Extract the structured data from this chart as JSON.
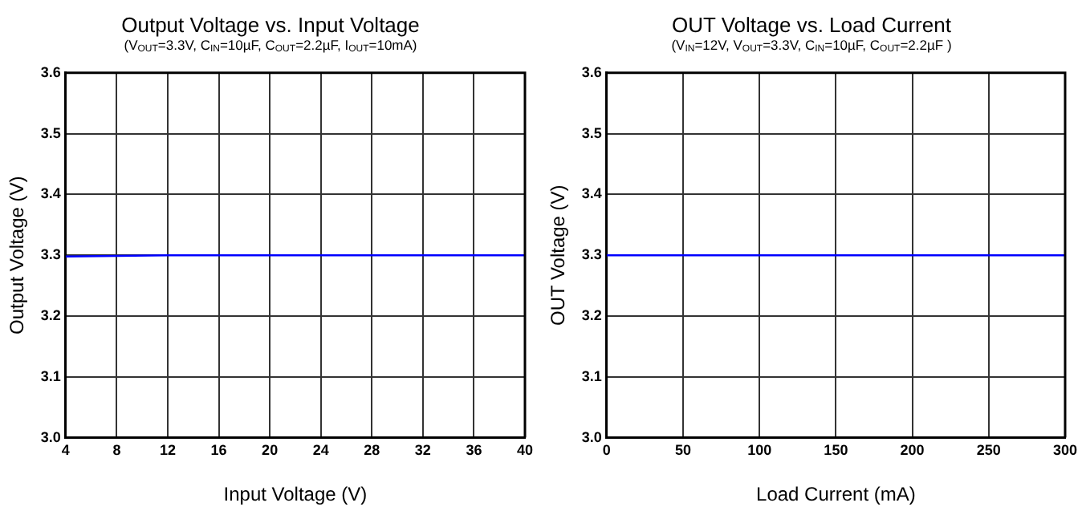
{
  "chart_data": [
    {
      "type": "line",
      "title": "Output Voltage vs. Input Voltage",
      "subtitle": "(V$_{OUT}$=3.3V, C$_{IN}$=10µF, C$_{OUT}$=2.2µF, I$_{OUT}$=10mA)",
      "xlabel": "Input Voltage (V)",
      "ylabel": "Output Voltage (V)",
      "x": [
        4,
        8,
        12,
        16,
        20,
        24,
        28,
        32,
        36,
        40
      ],
      "series": [
        {
          "color": "#0000ff",
          "values": [
            3.298,
            3.299,
            3.3,
            3.3,
            3.3,
            3.3,
            3.3,
            3.3,
            3.3,
            3.3
          ]
        }
      ],
      "xlim": [
        4,
        40
      ],
      "xticks": [
        4,
        8,
        12,
        16,
        20,
        24,
        28,
        32,
        36,
        40
      ],
      "ylim": [
        3.0,
        3.6
      ],
      "yticks": [
        {
          "value": 3.0,
          "label": "3.0"
        },
        3.1,
        3.2,
        3.3,
        3.4,
        3.5,
        3.6
      ],
      "grid": true,
      "legend": false,
      "marker": "none"
    },
    {
      "type": "line",
      "title": "OUT Voltage vs. Load Current",
      "subtitle": "(V$_{IN}$=12V, V$_{OUT}$=3.3V, C$_{IN}$=10µF, C$_{OUT}$=2.2µF )",
      "xlabel": "Load Current (mA)",
      "ylabel": "OUT Voltage (V)",
      "x": [
        0,
        50,
        100,
        150,
        200,
        250,
        300
      ],
      "series": [
        {
          "color": "#0000ff",
          "values": [
            3.3,
            3.3,
            3.3,
            3.3,
            3.3,
            3.3,
            3.3
          ]
        }
      ],
      "xlim": [
        0,
        300
      ],
      "xticks": [
        0,
        50,
        100,
        150,
        200,
        250,
        300
      ],
      "ylim": [
        3.0,
        3.6
      ],
      "yticks": [
        {
          "value": 3.0,
          "label": "3.0"
        },
        3.1,
        3.2,
        3.3,
        3.4,
        3.5,
        3.6
      ],
      "grid": true,
      "legend": false,
      "marker": "none"
    }
  ]
}
